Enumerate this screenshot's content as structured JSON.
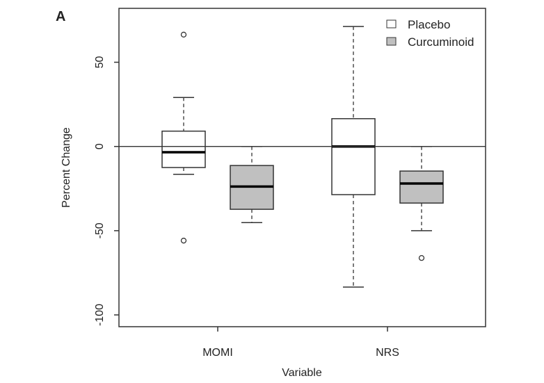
{
  "panel_label": "A",
  "chart_data": {
    "type": "boxplot",
    "title": "",
    "xlabel": "Variable",
    "ylabel": "Percent Change",
    "ylim": [
      -107,
      82
    ],
    "yticks": [
      50,
      0,
      -50,
      -100
    ],
    "ytick_labels": [
      "50",
      "0",
      "-50",
      "-100"
    ],
    "categories": [
      "MOMI",
      "NRS"
    ],
    "reference_line": 0,
    "legend": {
      "position": "top-right",
      "entries": [
        "Placebo",
        "Curcuminoid"
      ]
    },
    "colors": {
      "Placebo": "#ffffff",
      "Curcuminoid": "#c0c0c0"
    },
    "series": [
      {
        "name": "Placebo",
        "boxes": [
          {
            "category": "MOMI",
            "whisker_low": -16.5,
            "q1": -12.5,
            "median": -3.4,
            "q3": 9.1,
            "whisker_high": 29.1,
            "outliers": [
              66.4,
              -55.9
            ]
          },
          {
            "category": "NRS",
            "whisker_low": -83.5,
            "q1": -28.6,
            "median": 0,
            "q3": 16.5,
            "whisker_high": 71.2,
            "outliers": []
          }
        ]
      },
      {
        "name": "Curcuminoid",
        "boxes": [
          {
            "category": "MOMI",
            "whisker_low": -45.2,
            "q1": -37.3,
            "median": -23.8,
            "q3": -11.3,
            "whisker_high": 0,
            "outliers": []
          },
          {
            "category": "NRS",
            "whisker_low": -50,
            "q1": -33.6,
            "median": -22,
            "q3": -14.6,
            "whisker_high": 0,
            "outliers": [
              -66.2
            ]
          }
        ]
      }
    ]
  }
}
